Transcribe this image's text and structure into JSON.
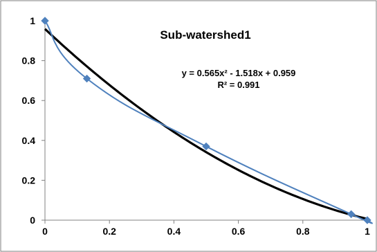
{
  "chart_data": {
    "type": "scatter",
    "title": "Sub-watershed1",
    "xlabel": "",
    "ylabel": "",
    "xlim": [
      0,
      1
    ],
    "ylim": [
      0,
      1
    ],
    "x_ticks": [
      "0",
      "0.2",
      "0.4",
      "0.6",
      "0.8",
      "1"
    ],
    "y_ticks": [
      "0",
      "0.2",
      "0.4",
      "0.6",
      "0.8",
      "1"
    ],
    "grid": false,
    "series": [
      {
        "kind": "points-smoothed-line",
        "color": "#4f81bd",
        "x": [
          0,
          0.13,
          0.5,
          0.95,
          1
        ],
        "y": [
          1,
          0.71,
          0.37,
          0.03,
          0
        ]
      },
      {
        "kind": "polynomial-trendline",
        "color": "#000000",
        "coefficients": [
          0.565,
          -1.518,
          0.959
        ]
      }
    ],
    "annotations": {
      "equation": "y = 0.565x² - 1.518x + 0.959",
      "r_squared": "R² = 0.991"
    }
  }
}
